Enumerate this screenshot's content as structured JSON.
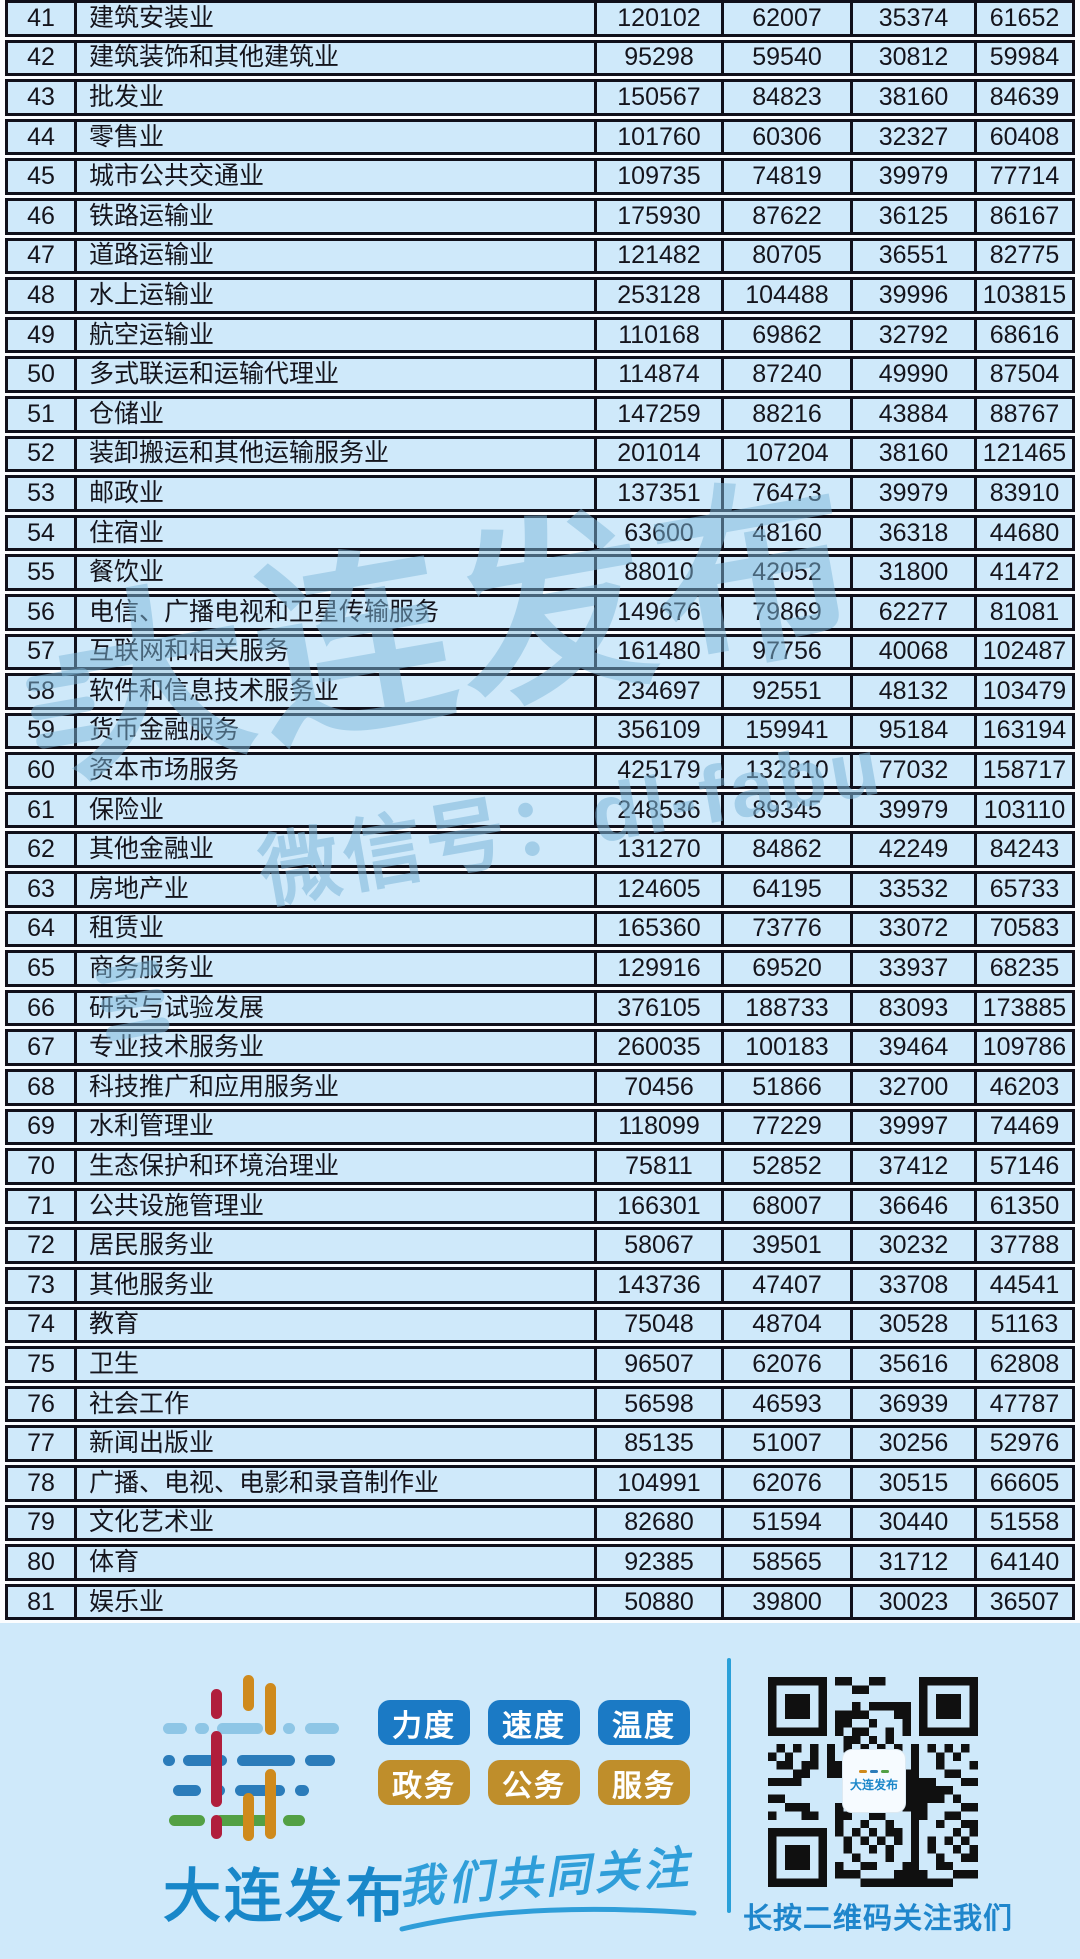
{
  "table": {
    "rows": [
      {
        "no": "41",
        "industry": "建筑安装业",
        "values": [
          "120102",
          "62007",
          "35374",
          "61652"
        ]
      },
      {
        "no": "42",
        "industry": "建筑装饰和其他建筑业",
        "values": [
          "95298",
          "59540",
          "30812",
          "59984"
        ]
      },
      {
        "no": "43",
        "industry": "批发业",
        "values": [
          "150567",
          "84823",
          "38160",
          "84639"
        ]
      },
      {
        "no": "44",
        "industry": "零售业",
        "values": [
          "101760",
          "60306",
          "32327",
          "60408"
        ]
      },
      {
        "no": "45",
        "industry": "城市公共交通业",
        "values": [
          "109735",
          "74819",
          "39979",
          "77714"
        ]
      },
      {
        "no": "46",
        "industry": "铁路运输业",
        "values": [
          "175930",
          "87622",
          "36125",
          "86167"
        ]
      },
      {
        "no": "47",
        "industry": "道路运输业",
        "values": [
          "121482",
          "80705",
          "36551",
          "82775"
        ]
      },
      {
        "no": "48",
        "industry": "水上运输业",
        "values": [
          "253128",
          "104488",
          "39996",
          "103815"
        ]
      },
      {
        "no": "49",
        "industry": "航空运输业",
        "values": [
          "110168",
          "69862",
          "32792",
          "68616"
        ]
      },
      {
        "no": "50",
        "industry": "多式联运和运输代理业",
        "values": [
          "114874",
          "87240",
          "49990",
          "87504"
        ]
      },
      {
        "no": "51",
        "industry": "仓储业",
        "values": [
          "147259",
          "88216",
          "43884",
          "88767"
        ]
      },
      {
        "no": "52",
        "industry": "装卸搬运和其他运输服务业",
        "values": [
          "201014",
          "107204",
          "38160",
          "121465"
        ]
      },
      {
        "no": "53",
        "industry": "邮政业",
        "values": [
          "137351",
          "76473",
          "39979",
          "83910"
        ]
      },
      {
        "no": "54",
        "industry": "住宿业",
        "values": [
          "63600",
          "48160",
          "36318",
          "44680"
        ]
      },
      {
        "no": "55",
        "industry": "餐饮业",
        "values": [
          "88010",
          "42052",
          "31800",
          "41472"
        ]
      },
      {
        "no": "56",
        "industry": "电信、广播电视和卫星传输服务",
        "values": [
          "149676",
          "79869",
          "62277",
          "81081"
        ]
      },
      {
        "no": "57",
        "industry": "互联网和相关服务",
        "values": [
          "161480",
          "97756",
          "40068",
          "102487"
        ]
      },
      {
        "no": "58",
        "industry": "软件和信息技术服务业",
        "values": [
          "234697",
          "92551",
          "48132",
          "103479"
        ]
      },
      {
        "no": "59",
        "industry": "货币金融服务",
        "values": [
          "356109",
          "159941",
          "95184",
          "163194"
        ]
      },
      {
        "no": "60",
        "industry": "资本市场服务",
        "values": [
          "425179",
          "132810",
          "77032",
          "158717"
        ]
      },
      {
        "no": "61",
        "industry": "保险业",
        "values": [
          "248536",
          "89345",
          "39979",
          "103110"
        ]
      },
      {
        "no": "62",
        "industry": "其他金融业",
        "values": [
          "131270",
          "84862",
          "42249",
          "84243"
        ]
      },
      {
        "no": "63",
        "industry": "房地产业",
        "values": [
          "124605",
          "64195",
          "33532",
          "65733"
        ]
      },
      {
        "no": "64",
        "industry": "租赁业",
        "values": [
          "165360",
          "73776",
          "33072",
          "70583"
        ]
      },
      {
        "no": "65",
        "industry": "商务服务业",
        "values": [
          "129916",
          "69520",
          "33937",
          "68235"
        ]
      },
      {
        "no": "66",
        "industry": "研究与试验发展",
        "values": [
          "376105",
          "188733",
          "83093",
          "173885"
        ]
      },
      {
        "no": "67",
        "industry": "专业技术服务业",
        "values": [
          "260035",
          "100183",
          "39464",
          "109786"
        ]
      },
      {
        "no": "68",
        "industry": "科技推广和应用服务业",
        "values": [
          "70456",
          "51866",
          "32700",
          "46203"
        ]
      },
      {
        "no": "69",
        "industry": "水利管理业",
        "values": [
          "118099",
          "77229",
          "39997",
          "74469"
        ]
      },
      {
        "no": "70",
        "industry": "生态保护和环境治理业",
        "values": [
          "75811",
          "52852",
          "37412",
          "57146"
        ]
      },
      {
        "no": "71",
        "industry": "公共设施管理业",
        "values": [
          "166301",
          "68007",
          "36646",
          "61350"
        ]
      },
      {
        "no": "72",
        "industry": "居民服务业",
        "values": [
          "58067",
          "39501",
          "30232",
          "37788"
        ]
      },
      {
        "no": "73",
        "industry": "其他服务业",
        "values": [
          "143736",
          "47407",
          "33708",
          "44541"
        ]
      },
      {
        "no": "74",
        "industry": "教育",
        "values": [
          "75048",
          "48704",
          "30528",
          "51163"
        ]
      },
      {
        "no": "75",
        "industry": "卫生",
        "values": [
          "96507",
          "62076",
          "35616",
          "62808"
        ]
      },
      {
        "no": "76",
        "industry": "社会工作",
        "values": [
          "56598",
          "46593",
          "36939",
          "47787"
        ]
      },
      {
        "no": "77",
        "industry": "新闻出版业",
        "values": [
          "85135",
          "51007",
          "30256",
          "52976"
        ]
      },
      {
        "no": "78",
        "industry": "广播、电视、电影和录音制作业",
        "values": [
          "104991",
          "62076",
          "30515",
          "66605"
        ]
      },
      {
        "no": "79",
        "industry": "文化艺术业",
        "values": [
          "82680",
          "51594",
          "30440",
          "51558"
        ]
      },
      {
        "no": "80",
        "industry": "体育",
        "values": [
          "92385",
          "58565",
          "31712",
          "64140"
        ]
      },
      {
        "no": "81",
        "industry": "娱乐业",
        "values": [
          "50880",
          "39800",
          "30023",
          "36507"
        ]
      }
    ]
  },
  "watermark": {
    "brand": "大连发布",
    "wechat": "微信号：dl-fabu"
  },
  "footer": {
    "brand": "大连发布",
    "badges_blue": [
      "力度",
      "速度",
      "温度"
    ],
    "badges_gold": [
      "政务",
      "公务",
      "服务"
    ],
    "slogan": "我们共同关注",
    "qr_caption": "长按二维码关注我们",
    "qr_center": "大连发布"
  },
  "colors": {
    "row_bg": "#cfe9fa",
    "table_border": "#10101a",
    "badge_blue": "#1b7ac5",
    "badge_gold": "#bf8e2b",
    "brand_blue": "#1887c9",
    "slogan_blue": "#2f9ed9",
    "divider_blue": "#2aa0d9",
    "caption_blue": "#1f86cc",
    "watermark_blue": "#7eb7d9",
    "qr_black": "#101010"
  }
}
